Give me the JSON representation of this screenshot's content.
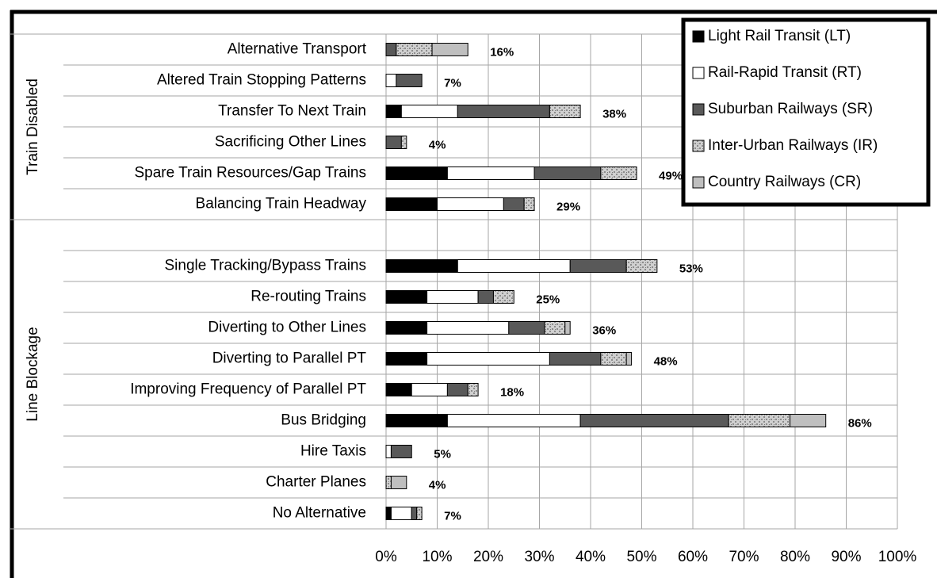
{
  "chart_data": {
    "type": "stacked-barh",
    "groups": [
      {
        "name": "Train Disabled"
      },
      {
        "name": "Line Blockage"
      }
    ],
    "categories": [
      "Alternative Transport",
      "Altered Train Stopping Patterns",
      "Transfer To Next Train",
      "Sacrificing Other Lines",
      "Spare Train Resources/Gap Trains",
      "Balancing  Train Headway",
      null,
      "Single Tracking/Bypass Trains",
      "Re-routing Trains",
      "Diverting to Other Lines",
      "Diverting to Parallel PT",
      "Improving Frequency of Parallel PT",
      "Bus Bridging",
      "Hire Taxis",
      "Charter Planes",
      "No Alternative"
    ],
    "series": [
      {
        "name": "Light Rail Transit (LT)",
        "color": "#000000",
        "values": [
          0,
          0,
          3,
          0,
          12,
          10,
          null,
          14,
          8,
          8,
          8,
          5,
          12,
          0,
          0,
          1
        ]
      },
      {
        "name": "Rail-Rapid Transit (RT)",
        "color": "#ffffff",
        "values": [
          0,
          2,
          11,
          0,
          17,
          13,
          null,
          22,
          10,
          16,
          24,
          7,
          26,
          1,
          0,
          4
        ]
      },
      {
        "name": "Suburban Railways (SR)",
        "color": "#595959",
        "values": [
          2,
          5,
          18,
          3,
          13,
          4,
          null,
          11,
          3,
          7,
          10,
          4,
          29,
          4,
          0,
          1
        ]
      },
      {
        "name": "Inter-Urban Railways (IR)",
        "color": "#a6a6a6",
        "pattern": true,
        "values": [
          7,
          0,
          6,
          1,
          7,
          2,
          null,
          6,
          4,
          4,
          5,
          2,
          12,
          0,
          1,
          1
        ]
      },
      {
        "name": "Country Railways (CR)",
        "color": "#bfbfbf",
        "values": [
          7,
          0,
          0,
          0,
          0,
          0,
          null,
          0,
          0,
          1,
          1,
          0,
          7,
          0,
          3,
          0
        ]
      }
    ],
    "totals": [
      16,
      7,
      38,
      4,
      49,
      29,
      null,
      53,
      25,
      36,
      48,
      18,
      86,
      5,
      4,
      7
    ],
    "total_labels": [
      "16%",
      "7%",
      "38%",
      "4%",
      "49%",
      "29%",
      null,
      "53%",
      "25%",
      "36%",
      "48%",
      "18%",
      "86%",
      "5%",
      "4%",
      "7%"
    ],
    "xlim": [
      0,
      100
    ],
    "xticks": [
      {
        "value": 0,
        "label": "0%"
      },
      {
        "value": 10,
        "label": "10%"
      },
      {
        "value": 20,
        "label": "20%"
      },
      {
        "value": 30,
        "label": "30%"
      },
      {
        "value": 40,
        "label": "40%"
      },
      {
        "value": 50,
        "label": "50%"
      },
      {
        "value": 60,
        "label": "60%"
      },
      {
        "value": 70,
        "label": "70%"
      },
      {
        "value": 80,
        "label": "80%"
      },
      {
        "value": 90,
        "label": "90%"
      },
      {
        "value": 100,
        "label": "100%"
      }
    ],
    "grid": true,
    "legend": "upper right"
  }
}
